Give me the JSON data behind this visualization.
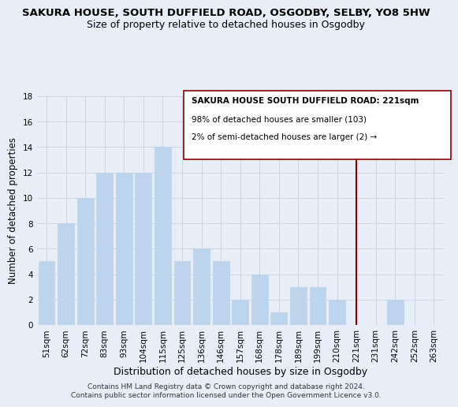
{
  "title_line1": "SAKURA HOUSE, SOUTH DUFFIELD ROAD, OSGODBY, SELBY, YO8 5HW",
  "title_line2": "Size of property relative to detached houses in Osgodby",
  "xlabel": "Distribution of detached houses by size in Osgodby",
  "ylabel": "Number of detached properties",
  "categories": [
    "51sqm",
    "62sqm",
    "72sqm",
    "83sqm",
    "93sqm",
    "104sqm",
    "115sqm",
    "125sqm",
    "136sqm",
    "146sqm",
    "157sqm",
    "168sqm",
    "178sqm",
    "189sqm",
    "199sqm",
    "210sqm",
    "221sqm",
    "231sqm",
    "242sqm",
    "252sqm",
    "263sqm"
  ],
  "values": [
    5,
    8,
    10,
    12,
    12,
    12,
    14,
    5,
    6,
    5,
    2,
    4,
    1,
    3,
    3,
    2,
    0,
    0,
    2,
    0,
    0
  ],
  "bar_color": "#bcd4ec",
  "highlight_index": 16,
  "highlight_line_color": "#8b0000",
  "legend_title": "SAKURA HOUSE SOUTH DUFFIELD ROAD: 221sqm",
  "legend_line1": "98% of detached houses are smaller (103)",
  "legend_line2": "2% of semi-detached houses are larger (2) →",
  "footer1": "Contains HM Land Registry data © Crown copyright and database right 2024.",
  "footer2": "Contains public sector information licensed under the Open Government Licence v3.0.",
  "ylim": [
    0,
    18
  ],
  "yticks": [
    0,
    2,
    4,
    6,
    8,
    10,
    12,
    14,
    16,
    18
  ],
  "background_color": "#e8eef7",
  "plot_bg_color": "#e8eef7",
  "grid_color": "#c8d0dc",
  "title1_fontsize": 9.5,
  "title2_fontsize": 9,
  "tick_fontsize": 7.5,
  "xlabel_fontsize": 9,
  "ylabel_fontsize": 8.5,
  "footer_fontsize": 6.5
}
